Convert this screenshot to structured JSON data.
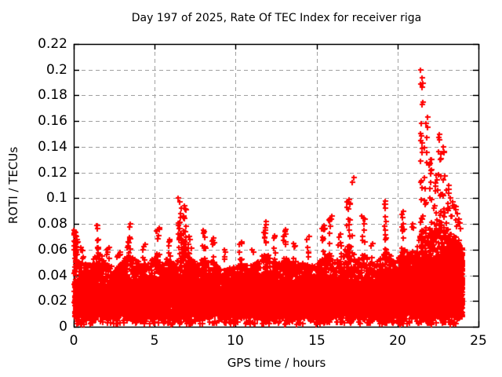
{
  "chart_data": {
    "type": "scatter",
    "title": "Day 197 of 2025, Rate Of TEC Index for receiver riga",
    "xlabel": "GPS time / hours",
    "ylabel": "ROTI / TECUs",
    "xlim": [
      0,
      25
    ],
    "ylim": [
      0,
      0.22
    ],
    "xtick_values": [
      0,
      5,
      10,
      15,
      20,
      25
    ],
    "xtick_labels": [
      "0",
      "5",
      "10",
      "15",
      "20",
      "25"
    ],
    "ytick_values": [
      0,
      0.02,
      0.04,
      0.06,
      0.08,
      0.1,
      0.12,
      0.14,
      0.16,
      0.18,
      0.2,
      0.22
    ],
    "ytick_labels": [
      "0",
      "0.02",
      "0.04",
      "0.06",
      "0.08",
      "0.1",
      "0.12",
      "0.14",
      "0.16",
      "0.18",
      "0.2",
      "0.22"
    ],
    "grid": true,
    "grid_style": "dashed",
    "grid_color": "#a0a0a0",
    "axis_color": "#000000",
    "marker": "plus",
    "marker_color": "#ff0000",
    "legend": null,
    "data_time_range_hours": [
      0,
      24
    ],
    "seed": 1197,
    "baseline_band": {
      "y_min": 0.007,
      "low_outlier_min": 0.002,
      "n_core": 9000,
      "n_grass": 2600,
      "n_low": 350,
      "n_evening_extra": 2600,
      "evening_range": [
        21,
        24
      ]
    },
    "core_top_profile": {
      "x": [
        0,
        2,
        4,
        6,
        7,
        8,
        9,
        10,
        11,
        12,
        13,
        14,
        15,
        16,
        17,
        18,
        19,
        20,
        21,
        21.5,
        22,
        22.5,
        23,
        23.3,
        23.6,
        24
      ],
      "top": [
        0.034,
        0.031,
        0.033,
        0.036,
        0.037,
        0.033,
        0.03,
        0.031,
        0.031,
        0.035,
        0.033,
        0.031,
        0.033,
        0.033,
        0.035,
        0.031,
        0.033,
        0.037,
        0.041,
        0.048,
        0.05,
        0.053,
        0.049,
        0.056,
        0.058,
        0.054
      ]
    },
    "grass_envelope": {
      "x": [
        0,
        0.3,
        1.0,
        1.5,
        2.0,
        2.6,
        3.4,
        3.8,
        4.4,
        5.2,
        5.9,
        6.3,
        6.8,
        7.2,
        7.7,
        8.1,
        8.7,
        9.2,
        9.7,
        10.3,
        11.0,
        11.8,
        12.4,
        13.0,
        13.7,
        14.4,
        15.0,
        15.6,
        16.1,
        16.6,
        17.0,
        17.5,
        18.0,
        18.6,
        19.3,
        19.8,
        20.4,
        21.0,
        21.5,
        22.0,
        22.6,
        23.0,
        23.5,
        24.0
      ],
      "top": [
        0.07,
        0.052,
        0.048,
        0.06,
        0.05,
        0.045,
        0.057,
        0.052,
        0.047,
        0.058,
        0.052,
        0.048,
        0.068,
        0.056,
        0.048,
        0.056,
        0.05,
        0.044,
        0.046,
        0.05,
        0.047,
        0.058,
        0.052,
        0.056,
        0.048,
        0.052,
        0.048,
        0.058,
        0.052,
        0.055,
        0.065,
        0.052,
        0.056,
        0.048,
        0.06,
        0.052,
        0.06,
        0.056,
        0.075,
        0.08,
        0.085,
        0.078,
        0.068,
        0.062
      ]
    },
    "spikes": [
      {
        "x": 0.05,
        "peak": 0.075,
        "n": 16
      },
      {
        "x": 0.15,
        "peak": 0.07,
        "n": 12
      },
      {
        "x": 0.5,
        "peak": 0.062,
        "n": 8
      },
      {
        "x": 1.45,
        "peak": 0.079,
        "n": 14
      },
      {
        "x": 2.1,
        "peak": 0.062,
        "n": 8
      },
      {
        "x": 2.75,
        "peak": 0.058,
        "n": 6
      },
      {
        "x": 3.4,
        "peak": 0.08,
        "n": 16
      },
      {
        "x": 4.35,
        "peak": 0.064,
        "n": 8
      },
      {
        "x": 5.2,
        "peak": 0.077,
        "n": 12
      },
      {
        "x": 5.9,
        "peak": 0.068,
        "n": 8
      },
      {
        "x": 6.55,
        "peak": 0.1,
        "n": 24
      },
      {
        "x": 6.85,
        "peak": 0.094,
        "n": 20
      },
      {
        "x": 7.15,
        "peak": 0.07,
        "n": 10
      },
      {
        "x": 8.05,
        "peak": 0.075,
        "n": 12
      },
      {
        "x": 8.6,
        "peak": 0.069,
        "n": 8
      },
      {
        "x": 9.3,
        "peak": 0.06,
        "n": 6
      },
      {
        "x": 10.3,
        "peak": 0.066,
        "n": 8
      },
      {
        "x": 11.0,
        "peak": 0.06,
        "n": 6
      },
      {
        "x": 11.8,
        "peak": 0.082,
        "n": 14
      },
      {
        "x": 12.35,
        "peak": 0.071,
        "n": 8
      },
      {
        "x": 13.0,
        "peak": 0.076,
        "n": 12
      },
      {
        "x": 13.65,
        "peak": 0.065,
        "n": 6
      },
      {
        "x": 14.45,
        "peak": 0.07,
        "n": 8
      },
      {
        "x": 15.4,
        "peak": 0.079,
        "n": 10
      },
      {
        "x": 15.85,
        "peak": 0.086,
        "n": 12
      },
      {
        "x": 16.45,
        "peak": 0.072,
        "n": 8
      },
      {
        "x": 16.95,
        "peak": 0.099,
        "n": 18
      },
      {
        "x": 17.2,
        "peak": 0.116,
        "n": 3
      },
      {
        "x": 17.9,
        "peak": 0.086,
        "n": 10
      },
      {
        "x": 18.45,
        "peak": 0.065,
        "n": 6
      },
      {
        "x": 19.25,
        "peak": 0.098,
        "n": 14
      },
      {
        "x": 20.3,
        "peak": 0.09,
        "n": 14
      },
      {
        "x": 20.9,
        "peak": 0.08,
        "n": 10
      },
      {
        "x": 21.5,
        "peak": 0.2,
        "n": 28
      },
      {
        "x": 21.75,
        "peak": 0.163,
        "n": 16
      },
      {
        "x": 22.05,
        "peak": 0.13,
        "n": 14
      },
      {
        "x": 22.35,
        "peak": 0.118,
        "n": 12
      },
      {
        "x": 22.6,
        "peak": 0.15,
        "n": 18
      },
      {
        "x": 22.85,
        "peak": 0.14,
        "n": 14
      },
      {
        "x": 23.1,
        "peak": 0.11,
        "n": 12
      },
      {
        "x": 23.35,
        "peak": 0.1,
        "n": 10
      },
      {
        "x": 23.6,
        "peak": 0.094,
        "n": 10
      },
      {
        "x": 23.85,
        "peak": 0.084,
        "n": 8
      }
    ]
  }
}
